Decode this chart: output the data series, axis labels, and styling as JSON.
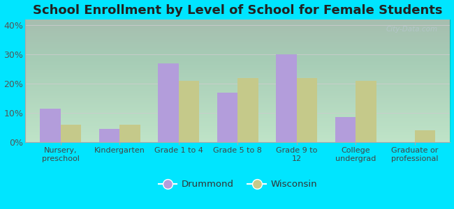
{
  "title": "School Enrollment by Level of School for Female Students",
  "categories": [
    "Nursery,\npreschool",
    "Kindergarten",
    "Grade 1 to 4",
    "Grade 5 to 8",
    "Grade 9 to\n12",
    "College\nundergrad",
    "Graduate or\nprofessional"
  ],
  "drummond": [
    11.5,
    4.5,
    27.0,
    17.0,
    30.0,
    8.5,
    0.0
  ],
  "wisconsin": [
    6.0,
    6.0,
    21.0,
    22.0,
    22.0,
    21.0,
    4.0
  ],
  "drummond_color": "#b39ddb",
  "wisconsin_color": "#c5c98a",
  "background_color": "#00e5ff",
  "title_fontsize": 13,
  "legend_labels": [
    "Drummond",
    "Wisconsin"
  ],
  "ylim": [
    0,
    42
  ],
  "yticks": [
    0,
    10,
    20,
    30,
    40
  ],
  "ytick_labels": [
    "0%",
    "10%",
    "20%",
    "30%",
    "40%"
  ],
  "bar_width": 0.35,
  "watermark": "City-Data.com"
}
